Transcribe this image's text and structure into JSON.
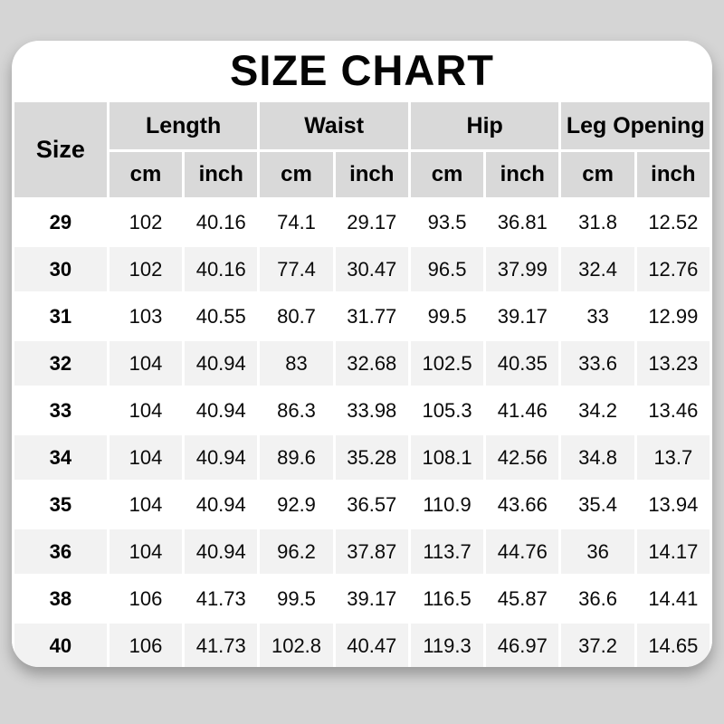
{
  "title": "SIZE CHART",
  "table": {
    "size_header": "Size",
    "groups": [
      {
        "label": "Length"
      },
      {
        "label": "Waist"
      },
      {
        "label": "Hip"
      },
      {
        "label": "Leg Opening"
      }
    ],
    "unit_labels": [
      "cm",
      "inch"
    ],
    "rows": [
      {
        "size": "29",
        "values": [
          "102",
          "40.16",
          "74.1",
          "29.17",
          "93.5",
          "36.81",
          "31.8",
          "12.52"
        ]
      },
      {
        "size": "30",
        "values": [
          "102",
          "40.16",
          "77.4",
          "30.47",
          "96.5",
          "37.99",
          "32.4",
          "12.76"
        ]
      },
      {
        "size": "31",
        "values": [
          "103",
          "40.55",
          "80.7",
          "31.77",
          "99.5",
          "39.17",
          "33",
          "12.99"
        ]
      },
      {
        "size": "32",
        "values": [
          "104",
          "40.94",
          "83",
          "32.68",
          "102.5",
          "40.35",
          "33.6",
          "13.23"
        ]
      },
      {
        "size": "33",
        "values": [
          "104",
          "40.94",
          "86.3",
          "33.98",
          "105.3",
          "41.46",
          "34.2",
          "13.46"
        ]
      },
      {
        "size": "34",
        "values": [
          "104",
          "40.94",
          "89.6",
          "35.28",
          "108.1",
          "42.56",
          "34.8",
          "13.7"
        ]
      },
      {
        "size": "35",
        "values": [
          "104",
          "40.94",
          "92.9",
          "36.57",
          "110.9",
          "43.66",
          "35.4",
          "13.94"
        ]
      },
      {
        "size": "36",
        "values": [
          "104",
          "40.94",
          "96.2",
          "37.87",
          "113.7",
          "44.76",
          "36",
          "14.17"
        ]
      },
      {
        "size": "38",
        "values": [
          "106",
          "41.73",
          "99.5",
          "39.17",
          "116.5",
          "45.87",
          "36.6",
          "14.41"
        ]
      },
      {
        "size": "40",
        "values": [
          "106",
          "41.73",
          "102.8",
          "40.47",
          "119.3",
          "46.97",
          "37.2",
          "14.65"
        ]
      }
    ]
  },
  "colors": {
    "page_background": "#d5d5d5",
    "card_background": "#ffffff",
    "header_cell": "#d9d9d9",
    "row_stripe": "#f2f2f2",
    "gridline": "#ffffff",
    "text": "#000000"
  },
  "chart_data": {
    "type": "table",
    "title": "SIZE CHART",
    "columns": [
      "Size",
      "Length cm",
      "Length inch",
      "Waist cm",
      "Waist inch",
      "Hip cm",
      "Hip inch",
      "Leg Opening cm",
      "Leg Opening inch"
    ],
    "rows": [
      [
        "29",
        102,
        40.16,
        74.1,
        29.17,
        93.5,
        36.81,
        31.8,
        12.52
      ],
      [
        "30",
        102,
        40.16,
        77.4,
        30.47,
        96.5,
        37.99,
        32.4,
        12.76
      ],
      [
        "31",
        103,
        40.55,
        80.7,
        31.77,
        99.5,
        39.17,
        33,
        12.99
      ],
      [
        "32",
        104,
        40.94,
        83,
        32.68,
        102.5,
        40.35,
        33.6,
        13.23
      ],
      [
        "33",
        104,
        40.94,
        86.3,
        33.98,
        105.3,
        41.46,
        34.2,
        13.46
      ],
      [
        "34",
        104,
        40.94,
        89.6,
        35.28,
        108.1,
        42.56,
        34.8,
        13.7
      ],
      [
        "35",
        104,
        40.94,
        92.9,
        36.57,
        110.9,
        43.66,
        35.4,
        13.94
      ],
      [
        "36",
        104,
        40.94,
        96.2,
        37.87,
        113.7,
        44.76,
        36,
        14.17
      ],
      [
        "38",
        106,
        41.73,
        99.5,
        39.17,
        116.5,
        45.87,
        36.6,
        14.41
      ],
      [
        "40",
        106,
        41.73,
        102.8,
        40.47,
        119.3,
        46.97,
        37.2,
        14.65
      ]
    ]
  }
}
